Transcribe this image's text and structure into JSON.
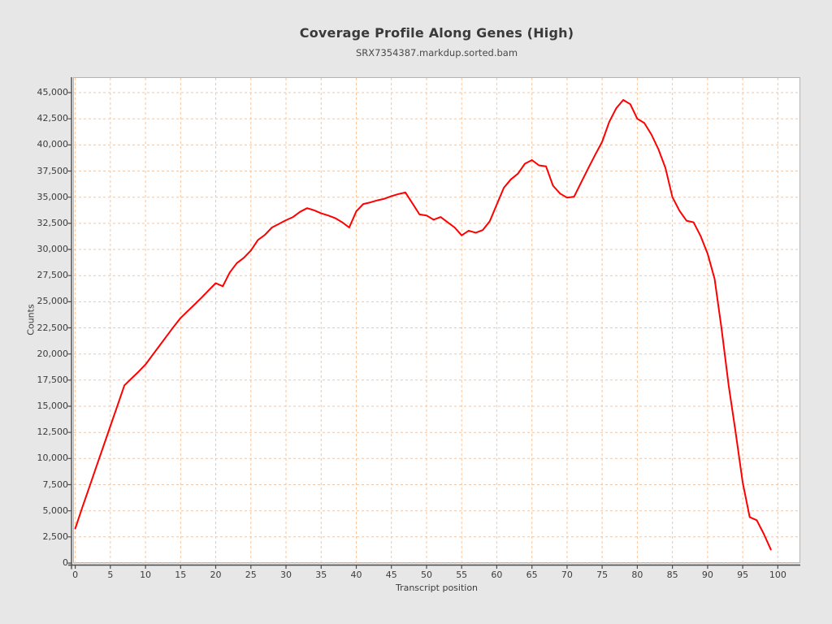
{
  "chart_data": {
    "type": "line",
    "title": "Coverage Profile Along Genes (High)",
    "subtitle": "SRX7354387.markdup.sorted.bam",
    "xlabel": "Transcript position",
    "ylabel": "Counts",
    "xlim": [
      -0.3,
      103.2
    ],
    "ylim": [
      0,
      46480
    ],
    "grid": true,
    "legend": "none",
    "background": "#e7e7e7",
    "plot_background": "#ffffff",
    "border_color": "#b4b4b4",
    "axis_color": "#4d4d4d",
    "grid_color": "#f7c49c",
    "line_color": "#ff0000",
    "x_tick_values": [
      0,
      5,
      10,
      15,
      20,
      25,
      30,
      35,
      40,
      45,
      50,
      55,
      60,
      65,
      70,
      75,
      80,
      85,
      90,
      95,
      100
    ],
    "y_tick_values": [
      0,
      2500,
      5000,
      7500,
      10000,
      12500,
      15000,
      17500,
      20000,
      22500,
      25000,
      27500,
      30000,
      32500,
      35000,
      37500,
      40000,
      42500,
      45000
    ],
    "y_tick_labels": [
      "0",
      "2,500",
      "5,000",
      "7,500",
      "10,000",
      "12,500",
      "15,000",
      "17,500",
      "20,000",
      "22,500",
      "25,000",
      "27,500",
      "30,000",
      "32,500",
      "35,000",
      "37,500",
      "40,000",
      "42,500",
      "45,000"
    ],
    "series": [
      {
        "name": "SRX7354387.markdup.sorted.bam",
        "x": [
          0,
          1,
          2,
          3,
          4,
          5,
          6,
          7,
          8,
          9,
          10,
          11,
          12,
          13,
          14,
          15,
          16,
          17,
          18,
          19,
          20,
          21,
          22,
          23,
          24,
          25,
          26,
          27,
          28,
          29,
          30,
          31,
          32,
          33,
          34,
          35,
          36,
          37,
          38,
          39,
          40,
          41,
          42,
          43,
          44,
          45,
          46,
          47,
          48,
          49,
          50,
          51,
          52,
          53,
          54,
          55,
          56,
          57,
          58,
          59,
          60,
          61,
          62,
          63,
          64,
          65,
          66,
          67,
          68,
          69,
          70,
          71,
          72,
          73,
          74,
          75,
          76,
          77,
          78,
          79,
          80,
          81,
          82,
          83,
          84,
          85,
          86,
          87,
          88,
          89,
          90,
          91,
          92,
          93,
          94,
          95,
          96,
          97,
          98,
          99
        ],
        "values": [
          3300,
          5300,
          7250,
          9200,
          11150,
          13100,
          15050,
          17000,
          17650,
          18300,
          19000,
          19900,
          20800,
          21700,
          22600,
          23450,
          24100,
          24750,
          25400,
          26100,
          26780,
          26480,
          27800,
          28700,
          29200,
          29900,
          30900,
          31400,
          32100,
          32450,
          32800,
          33100,
          33600,
          33950,
          33750,
          33450,
          33250,
          33000,
          32600,
          32100,
          33650,
          34350,
          34500,
          34700,
          34850,
          35100,
          35300,
          35450,
          34400,
          33350,
          33250,
          32850,
          33100,
          32600,
          32100,
          31350,
          31800,
          31600,
          31850,
          32700,
          34300,
          35900,
          36700,
          37250,
          38200,
          38550,
          38050,
          37950,
          36100,
          35350,
          34950,
          35050,
          36400,
          37750,
          39050,
          40300,
          42200,
          43500,
          44300,
          43900,
          42500,
          42100,
          41000,
          39600,
          37800,
          35000,
          33700,
          32750,
          32600,
          31300,
          29600,
          27200,
          22400,
          17000,
          12500,
          7700,
          4400,
          4100,
          2800,
          1300
        ]
      }
    ]
  }
}
